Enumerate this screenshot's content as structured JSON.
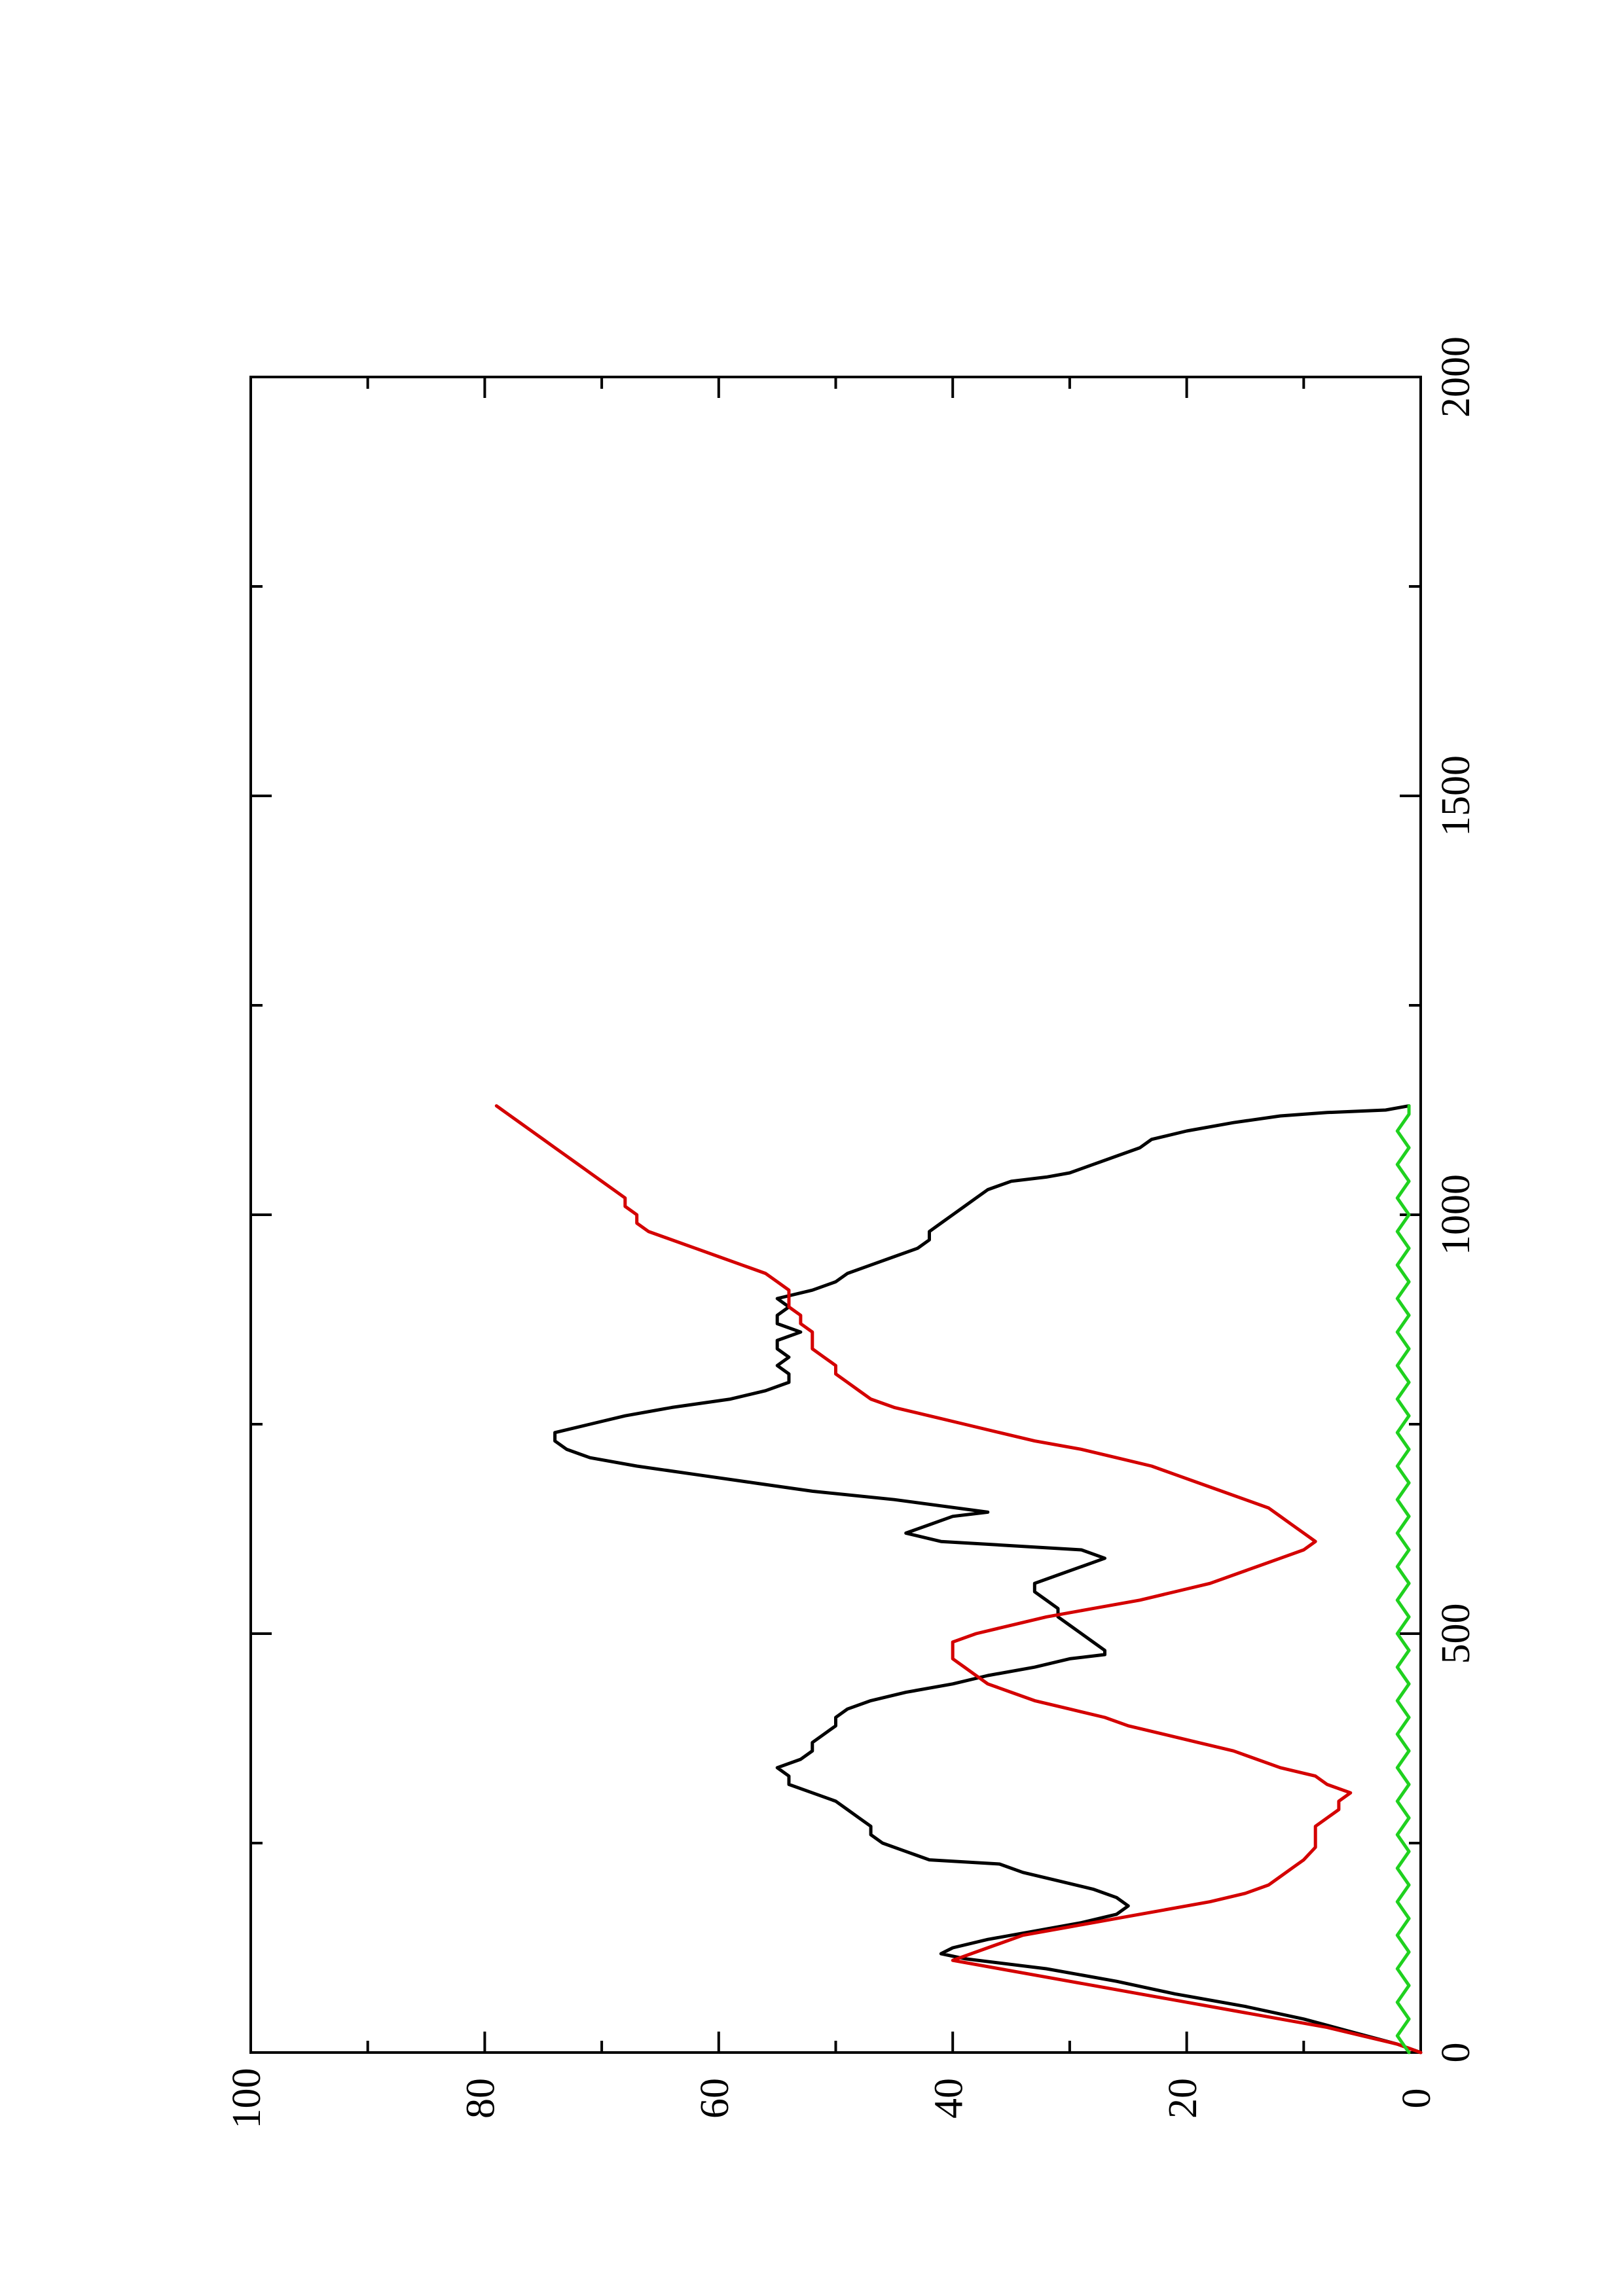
{
  "chart_data": {
    "type": "line",
    "orientation": "rotated-90-ccw",
    "title": "",
    "xlabel": "",
    "ylabel": "",
    "xlim": [
      0,
      2000
    ],
    "ylim": [
      0,
      100
    ],
    "x_ticks": [
      "0",
      "500",
      "1000",
      "1500",
      "2000"
    ],
    "y_ticks": [
      "0",
      "20",
      "40",
      "60",
      "80",
      "100"
    ],
    "grid": false,
    "legend": "none",
    "series": [
      {
        "color": "#000000",
        "points": [
          [
            0,
            0
          ],
          [
            10,
            2
          ],
          [
            25,
            6
          ],
          [
            40,
            10
          ],
          [
            55,
            15
          ],
          [
            70,
            21
          ],
          [
            85,
            26
          ],
          [
            100,
            32
          ],
          [
            112,
            39
          ],
          [
            118,
            41
          ],
          [
            125,
            40
          ],
          [
            135,
            37
          ],
          [
            145,
            33
          ],
          [
            155,
            29
          ],
          [
            165,
            26
          ],
          [
            175,
            25
          ],
          [
            185,
            26
          ],
          [
            195,
            28
          ],
          [
            205,
            31
          ],
          [
            215,
            34
          ],
          [
            225,
            36
          ],
          [
            230,
            42
          ],
          [
            240,
            44
          ],
          [
            250,
            46
          ],
          [
            260,
            47
          ],
          [
            270,
            47
          ],
          [
            280,
            48
          ],
          [
            290,
            49
          ],
          [
            300,
            50
          ],
          [
            310,
            52
          ],
          [
            320,
            54
          ],
          [
            330,
            54
          ],
          [
            340,
            55
          ],
          [
            350,
            53
          ],
          [
            360,
            52
          ],
          [
            370,
            52
          ],
          [
            380,
            51
          ],
          [
            390,
            50
          ],
          [
            400,
            50
          ],
          [
            410,
            49
          ],
          [
            420,
            47
          ],
          [
            430,
            44
          ],
          [
            440,
            40
          ],
          [
            450,
            37
          ],
          [
            460,
            33
          ],
          [
            470,
            30
          ],
          [
            475,
            27
          ],
          [
            480,
            27
          ],
          [
            490,
            28
          ],
          [
            500,
            29
          ],
          [
            510,
            30
          ],
          [
            520,
            31
          ],
          [
            530,
            31
          ],
          [
            540,
            32
          ],
          [
            550,
            33
          ],
          [
            560,
            33
          ],
          [
            570,
            31
          ],
          [
            580,
            29
          ],
          [
            590,
            27
          ],
          [
            600,
            29
          ],
          [
            605,
            35
          ],
          [
            610,
            41
          ],
          [
            620,
            44
          ],
          [
            630,
            42
          ],
          [
            640,
            40
          ],
          [
            645,
            37
          ],
          [
            660,
            45
          ],
          [
            670,
            52
          ],
          [
            680,
            57
          ],
          [
            690,
            62
          ],
          [
            700,
            67
          ],
          [
            710,
            71
          ],
          [
            720,
            73
          ],
          [
            730,
            74
          ],
          [
            740,
            74
          ],
          [
            750,
            71
          ],
          [
            760,
            68
          ],
          [
            770,
            64
          ],
          [
            780,
            59
          ],
          [
            790,
            56
          ],
          [
            800,
            54
          ],
          [
            810,
            54
          ],
          [
            820,
            55
          ],
          [
            830,
            54
          ],
          [
            840,
            55
          ],
          [
            850,
            55
          ],
          [
            860,
            53
          ],
          [
            870,
            55
          ],
          [
            880,
            55
          ],
          [
            890,
            54
          ],
          [
            900,
            55
          ],
          [
            910,
            52
          ],
          [
            920,
            50
          ],
          [
            930,
            49
          ],
          [
            940,
            47
          ],
          [
            950,
            45
          ],
          [
            960,
            43
          ],
          [
            970,
            42
          ],
          [
            980,
            42
          ],
          [
            990,
            41
          ],
          [
            1000,
            40
          ],
          [
            1010,
            39
          ],
          [
            1020,
            38
          ],
          [
            1030,
            37
          ],
          [
            1040,
            35
          ],
          [
            1045,
            32
          ],
          [
            1050,
            30
          ],
          [
            1060,
            28
          ],
          [
            1070,
            26
          ],
          [
            1080,
            24
          ],
          [
            1090,
            23
          ],
          [
            1100,
            20
          ],
          [
            1110,
            16
          ],
          [
            1118,
            12
          ],
          [
            1122,
            8
          ],
          [
            1125,
            3
          ],
          [
            1130,
            1
          ]
        ]
      },
      {
        "color": "#d40000",
        "points": [
          [
            0,
            0
          ],
          [
            10,
            2
          ],
          [
            20,
            5
          ],
          [
            30,
            8
          ],
          [
            40,
            12
          ],
          [
            50,
            16
          ],
          [
            60,
            20
          ],
          [
            70,
            24
          ],
          [
            80,
            28
          ],
          [
            90,
            32
          ],
          [
            100,
            36
          ],
          [
            110,
            40
          ],
          [
            120,
            38
          ],
          [
            130,
            36
          ],
          [
            140,
            34
          ],
          [
            150,
            30
          ],
          [
            160,
            26
          ],
          [
            170,
            22
          ],
          [
            180,
            18
          ],
          [
            190,
            15
          ],
          [
            200,
            13
          ],
          [
            210,
            12
          ],
          [
            220,
            11
          ],
          [
            230,
            10
          ],
          [
            245,
            9
          ],
          [
            260,
            9
          ],
          [
            270,
            9
          ],
          [
            280,
            8
          ],
          [
            290,
            7
          ],
          [
            300,
            7
          ],
          [
            310,
            6
          ],
          [
            320,
            8
          ],
          [
            330,
            9
          ],
          [
            340,
            12
          ],
          [
            350,
            14
          ],
          [
            360,
            16
          ],
          [
            370,
            19
          ],
          [
            380,
            22
          ],
          [
            390,
            25
          ],
          [
            400,
            27
          ],
          [
            410,
            30
          ],
          [
            420,
            33
          ],
          [
            430,
            35
          ],
          [
            440,
            37
          ],
          [
            450,
            38
          ],
          [
            460,
            39
          ],
          [
            470,
            40
          ],
          [
            480,
            40
          ],
          [
            490,
            40
          ],
          [
            500,
            38
          ],
          [
            510,
            35
          ],
          [
            520,
            32
          ],
          [
            530,
            28
          ],
          [
            540,
            24
          ],
          [
            550,
            21
          ],
          [
            560,
            18
          ],
          [
            570,
            16
          ],
          [
            580,
            14
          ],
          [
            590,
            12
          ],
          [
            600,
            10
          ],
          [
            610,
            9
          ],
          [
            620,
            10
          ],
          [
            630,
            11
          ],
          [
            640,
            12
          ],
          [
            650,
            13
          ],
          [
            660,
            15
          ],
          [
            670,
            17
          ],
          [
            680,
            19
          ],
          [
            690,
            21
          ],
          [
            700,
            23
          ],
          [
            710,
            26
          ],
          [
            720,
            29
          ],
          [
            730,
            33
          ],
          [
            740,
            36
          ],
          [
            750,
            39
          ],
          [
            760,
            42
          ],
          [
            770,
            45
          ],
          [
            780,
            47
          ],
          [
            790,
            48
          ],
          [
            800,
            49
          ],
          [
            810,
            50
          ],
          [
            820,
            50
          ],
          [
            830,
            51
          ],
          [
            840,
            52
          ],
          [
            850,
            52
          ],
          [
            860,
            52
          ],
          [
            870,
            53
          ],
          [
            880,
            53
          ],
          [
            890,
            54
          ],
          [
            900,
            54
          ],
          [
            910,
            54
          ],
          [
            920,
            55
          ],
          [
            930,
            56
          ],
          [
            940,
            58
          ],
          [
            950,
            60
          ],
          [
            960,
            62
          ],
          [
            970,
            64
          ],
          [
            980,
            66
          ],
          [
            990,
            67
          ],
          [
            1000,
            67
          ],
          [
            1010,
            68
          ],
          [
            1020,
            68
          ],
          [
            1030,
            69
          ],
          [
            1040,
            70
          ],
          [
            1050,
            71
          ],
          [
            1060,
            72
          ],
          [
            1070,
            73
          ],
          [
            1080,
            74
          ],
          [
            1090,
            75
          ],
          [
            1100,
            76
          ],
          [
            1110,
            77
          ],
          [
            1120,
            78
          ],
          [
            1130,
            79
          ]
        ]
      },
      {
        "color": "#1fd11f",
        "points": [
          [
            0,
            1
          ],
          [
            20,
            2
          ],
          [
            40,
            1
          ],
          [
            60,
            2
          ],
          [
            80,
            1
          ],
          [
            100,
            2
          ],
          [
            120,
            1
          ],
          [
            140,
            2
          ],
          [
            160,
            1
          ],
          [
            180,
            2
          ],
          [
            200,
            1
          ],
          [
            220,
            2
          ],
          [
            240,
            1
          ],
          [
            260,
            2
          ],
          [
            280,
            1
          ],
          [
            300,
            2
          ],
          [
            320,
            1
          ],
          [
            340,
            2
          ],
          [
            360,
            1
          ],
          [
            380,
            2
          ],
          [
            400,
            1
          ],
          [
            420,
            2
          ],
          [
            440,
            1
          ],
          [
            460,
            2
          ],
          [
            480,
            1
          ],
          [
            500,
            2
          ],
          [
            520,
            1
          ],
          [
            540,
            2
          ],
          [
            560,
            1
          ],
          [
            580,
            2
          ],
          [
            600,
            1
          ],
          [
            620,
            2
          ],
          [
            640,
            1
          ],
          [
            660,
            2
          ],
          [
            680,
            1
          ],
          [
            700,
            2
          ],
          [
            720,
            1
          ],
          [
            740,
            2
          ],
          [
            760,
            1
          ],
          [
            780,
            2
          ],
          [
            800,
            1
          ],
          [
            820,
            2
          ],
          [
            840,
            1
          ],
          [
            860,
            2
          ],
          [
            880,
            1
          ],
          [
            900,
            2
          ],
          [
            920,
            1
          ],
          [
            940,
            2
          ],
          [
            960,
            1
          ],
          [
            980,
            2
          ],
          [
            1000,
            1
          ],
          [
            1020,
            2
          ],
          [
            1040,
            1
          ],
          [
            1060,
            2
          ],
          [
            1080,
            1
          ],
          [
            1100,
            2
          ],
          [
            1120,
            1
          ],
          [
            1130,
            1
          ]
        ]
      }
    ]
  }
}
